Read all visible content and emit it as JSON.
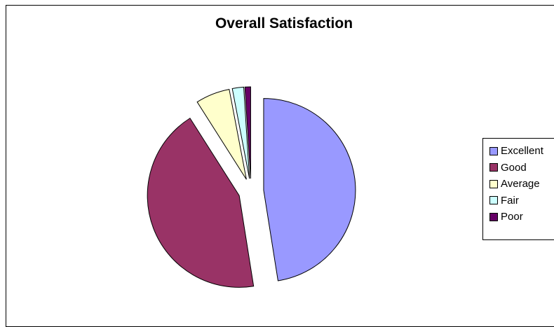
{
  "chart_data": {
    "type": "pie",
    "title": "Overall Satisfaction",
    "exploded": true,
    "slices": [
      {
        "label": "Excellent",
        "value": 47.5,
        "color": "#9999FF"
      },
      {
        "label": "Good",
        "value": 43.5,
        "color": "#993366"
      },
      {
        "label": "Average",
        "value": 6,
        "color": "#FFFFCC"
      },
      {
        "label": "Fair",
        "value": 2,
        "color": "#CCFFFF"
      },
      {
        "label": "Poor",
        "value": 1,
        "color": "#660066"
      }
    ],
    "legend_position": "right"
  }
}
